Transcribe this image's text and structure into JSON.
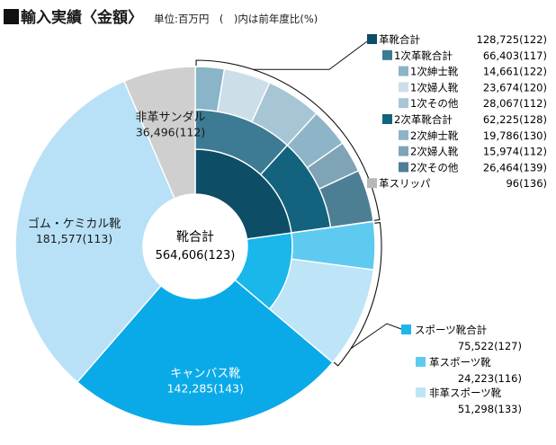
{
  "title": "輸入実績〈金額〉",
  "subtitle": "単位:百万円　(　)内は前年度比(%)",
  "center_label": {
    "name": "靴合計",
    "value": "564,606(123)"
  },
  "chart_data": {
    "type": "pie",
    "title": "輸入実績〈金額〉",
    "unit": "百万円",
    "total": {
      "name": "靴合計",
      "value": 564606,
      "yoy": 123
    },
    "slices": [
      {
        "name": "革靴合計",
        "value": 128725,
        "yoy": 122,
        "value_label": "128,725(122)",
        "children": [
          {
            "name": "1次革靴合計",
            "value": 66403,
            "yoy": 117,
            "value_label": "66,403(117)",
            "children": [
              {
                "name": "1次紳士靴",
                "value": 14661,
                "yoy": 122,
                "value_label": "14,661(122)"
              },
              {
                "name": "1次婦人靴",
                "value": 23674,
                "yoy": 120,
                "value_label": "23,674(120)"
              },
              {
                "name": "1次その他",
                "value": 28067,
                "yoy": 112,
                "value_label": "28,067(112)"
              }
            ]
          },
          {
            "name": "2次革靴合計",
            "value": 62225,
            "yoy": 128,
            "value_label": "62,225(128)",
            "children": [
              {
                "name": "2次紳士靴",
                "value": 19786,
                "yoy": 130,
                "value_label": "19,786(130)"
              },
              {
                "name": "2次婦人靴",
                "value": 15974,
                "yoy": 112,
                "value_label": "15,974(112)"
              },
              {
                "name": "2次その他",
                "value": 26464,
                "yoy": 139,
                "value_label": "26,464(139)"
              }
            ]
          },
          {
            "name": "革スリッパ",
            "value": 96,
            "yoy": 136,
            "value_label": "96(136)"
          }
        ]
      },
      {
        "name": "スポーツ靴合計",
        "value": 75522,
        "yoy": 127,
        "value_label": "75,522(127)",
        "children": [
          {
            "name": "革スポーツ靴",
            "value": 24223,
            "yoy": 116,
            "value_label": "24,223(116)"
          },
          {
            "name": "非革スポーツ靴",
            "value": 51298,
            "yoy": 133,
            "value_label": "51,298(133)"
          }
        ]
      },
      {
        "name": "キャンバス靴",
        "value": 142285,
        "yoy": 143,
        "value_label": "142,285(143)"
      },
      {
        "name": "ゴム・ケミカル靴",
        "value": 181577,
        "yoy": 113,
        "value_label": "181,577(113)"
      },
      {
        "name": "非革サンダル",
        "value": 36496,
        "yoy": 112,
        "value_label": "36,496(112)"
      }
    ]
  },
  "legend_leather": [
    {
      "name": "革靴合計",
      "value_label": "128,725(122)",
      "color": "#0e4d66"
    },
    {
      "name": "1次革靴合計",
      "value_label": "66,403(117)",
      "color": "#3d7a94"
    },
    {
      "name": "1次紳士靴",
      "value_label": "14,661(122)",
      "color": "#8ab4c8"
    },
    {
      "name": "1次婦人靴",
      "value_label": "23,674(120)",
      "color": "#ccdfe9"
    },
    {
      "name": "1次その他",
      "value_label": "28,067(112)",
      "color": "#a6c6d6"
    },
    {
      "name": "2次革靴合計",
      "value_label": "62,225(128)",
      "color": "#13637e"
    },
    {
      "name": "2次紳士靴",
      "value_label": "19,786(130)",
      "color": "#8eb5c7"
    },
    {
      "name": "2次婦人靴",
      "value_label": "15,974(112)",
      "color": "#7ea4b6"
    },
    {
      "name": "2次その他",
      "value_label": "26,464(139)",
      "color": "#4d7f94"
    },
    {
      "name": "革スリッパ",
      "value_label": "96(136)",
      "color": "#b8b8b8"
    }
  ],
  "legend_sports": [
    {
      "name": "スポーツ靴合計",
      "value_label": "75,522(127)",
      "color": "#1ab7ea"
    },
    {
      "name": "革スポーツ靴",
      "value_label": "24,223(116)",
      "color": "#5fcaf0"
    },
    {
      "name": "非革スポーツ靴",
      "value_label": "51,298(133)",
      "color": "#bde4f7"
    }
  ],
  "colors": {
    "canvas": "#0aaae8",
    "rubber": "#b8e1f7",
    "sandal": "#cfcfcf",
    "leather_total": "#0e4d66",
    "leather_1": "#3d7a94",
    "leather_2": "#13637e",
    "sports_total": "#1ab7ea"
  }
}
